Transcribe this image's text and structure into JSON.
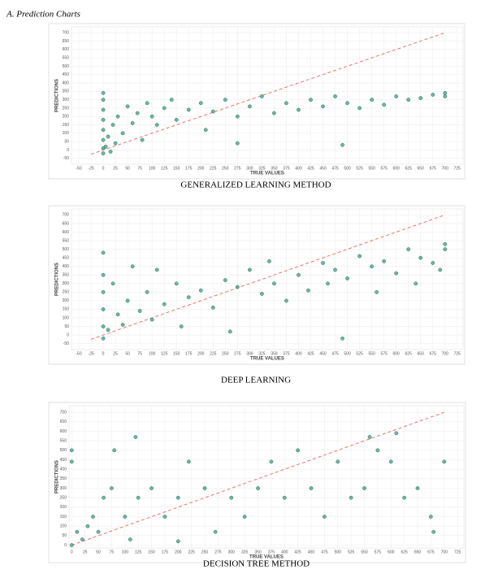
{
  "heading": "A.   Prediction Charts",
  "chart_data": [
    {
      "type": "scatter",
      "title": "GENERALIZED LEARNING METHOD",
      "xlabel": "TRUE VALUES",
      "ylabel": "PREDICTIONS",
      "xlim": [
        -65,
        737
      ],
      "ylim": [
        -85,
        735
      ],
      "xticks": [
        -50,
        -25,
        0,
        25,
        50,
        75,
        100,
        125,
        150,
        175,
        200,
        225,
        250,
        275,
        300,
        325,
        350,
        375,
        400,
        425,
        450,
        475,
        500,
        525,
        550,
        575,
        600,
        625,
        650,
        675,
        700,
        725
      ],
      "yticks": [
        -50,
        0,
        50,
        100,
        150,
        200,
        250,
        300,
        350,
        400,
        450,
        500,
        550,
        600,
        650,
        700
      ],
      "grid": true,
      "color": "#3aa58a",
      "reference_line": {
        "x": [
          -25,
          700
        ],
        "y": [
          -25,
          700
        ],
        "color": "#e8645a"
      },
      "x": [
        0,
        0,
        0,
        0,
        0,
        0,
        0,
        0,
        5,
        10,
        15,
        20,
        25,
        30,
        40,
        50,
        60,
        70,
        80,
        90,
        100,
        110,
        125,
        140,
        150,
        175,
        200,
        210,
        225,
        250,
        275,
        275,
        300,
        325,
        350,
        375,
        400,
        425,
        450,
        475,
        490,
        500,
        525,
        550,
        575,
        600,
        625,
        650,
        675,
        700,
        700
      ],
      "y": [
        -20,
        10,
        60,
        120,
        180,
        240,
        300,
        340,
        20,
        80,
        -10,
        150,
        40,
        200,
        100,
        260,
        160,
        220,
        60,
        280,
        200,
        150,
        250,
        300,
        180,
        240,
        280,
        120,
        230,
        300,
        40,
        200,
        260,
        320,
        220,
        280,
        240,
        300,
        260,
        320,
        30,
        280,
        250,
        300,
        270,
        320,
        300,
        310,
        330,
        340,
        320
      ]
    },
    {
      "type": "scatter",
      "title": "DEEP LEARNING",
      "xlabel": "TRUE VALUES",
      "ylabel": "PREDICTIONS",
      "xlim": [
        -65,
        737
      ],
      "ylim": [
        -85,
        735
      ],
      "xticks": [
        -50,
        -25,
        0,
        25,
        50,
        75,
        100,
        125,
        150,
        175,
        200,
        225,
        250,
        275,
        300,
        325,
        350,
        375,
        400,
        425,
        450,
        475,
        500,
        525,
        550,
        575,
        600,
        625,
        650,
        675,
        700,
        725
      ],
      "yticks": [
        -50,
        0,
        50,
        100,
        150,
        200,
        250,
        300,
        350,
        400,
        450,
        500,
        550,
        600,
        650,
        700
      ],
      "grid": true,
      "color": "#3aa58a",
      "reference_line": {
        "x": [
          -25,
          700
        ],
        "y": [
          -25,
          700
        ],
        "color": "#e8645a"
      },
      "x": [
        0,
        0,
        0,
        0,
        0,
        0,
        10,
        20,
        30,
        40,
        50,
        60,
        75,
        90,
        100,
        110,
        125,
        150,
        160,
        175,
        200,
        225,
        250,
        260,
        275,
        300,
        325,
        340,
        350,
        375,
        400,
        420,
        450,
        460,
        475,
        490,
        500,
        525,
        550,
        560,
        575,
        600,
        625,
        640,
        650,
        675,
        690,
        700,
        700
      ],
      "y": [
        -20,
        50,
        150,
        250,
        350,
        480,
        30,
        300,
        120,
        60,
        200,
        400,
        140,
        250,
        90,
        380,
        180,
        300,
        50,
        220,
        260,
        160,
        320,
        20,
        280,
        380,
        240,
        430,
        300,
        200,
        350,
        260,
        420,
        300,
        380,
        -20,
        330,
        460,
        400,
        250,
        430,
        360,
        500,
        300,
        450,
        420,
        380,
        530,
        500
      ]
    },
    {
      "type": "scatter",
      "title": "DECISION TREE METHOD",
      "xlabel": "TRUE VALUES",
      "ylabel": "PREDICTIONS",
      "xlim": [
        -5,
        737
      ],
      "ylim": [
        -15,
        735
      ],
      "xticks": [
        0,
        25,
        50,
        75,
        100,
        125,
        150,
        175,
        200,
        225,
        250,
        275,
        300,
        325,
        350,
        375,
        400,
        425,
        450,
        475,
        500,
        525,
        550,
        575,
        600,
        625,
        650,
        675,
        700,
        725
      ],
      "yticks": [
        0,
        50,
        100,
        150,
        200,
        250,
        300,
        350,
        400,
        450,
        500,
        550,
        600,
        650,
        700
      ],
      "grid": true,
      "color": "#3aa58a",
      "reference_line": {
        "x": [
          0,
          700
        ],
        "y": [
          0,
          700
        ],
        "color": "#e8645a"
      },
      "x": [
        0,
        0,
        0,
        10,
        20,
        30,
        40,
        50,
        60,
        75,
        80,
        100,
        110,
        120,
        125,
        150,
        175,
        200,
        200,
        220,
        250,
        270,
        300,
        325,
        350,
        375,
        400,
        425,
        450,
        475,
        500,
        525,
        550,
        575,
        600,
        625,
        650,
        675,
        700,
        610,
        560,
        680
      ],
      "y": [
        0,
        440,
        500,
        70,
        30,
        100,
        150,
        70,
        250,
        300,
        500,
        150,
        30,
        570,
        250,
        300,
        150,
        20,
        250,
        440,
        300,
        70,
        250,
        150,
        300,
        440,
        250,
        500,
        300,
        150,
        440,
        250,
        300,
        500,
        440,
        250,
        300,
        150,
        440,
        590,
        570,
        70
      ]
    }
  ]
}
